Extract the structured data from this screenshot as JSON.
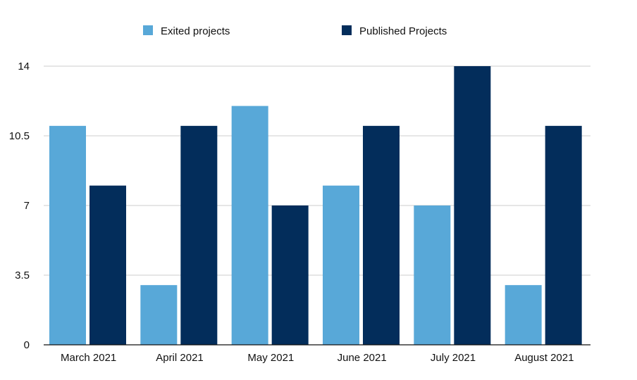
{
  "chart_data": {
    "type": "bar",
    "categories": [
      "March 2021",
      "April 2021",
      "May 2021",
      "June 2021",
      "July 2021",
      "August 2021"
    ],
    "series": [
      {
        "name": "Exited projects",
        "color": "#58a8d8",
        "values": [
          11,
          3,
          12,
          8,
          7,
          3
        ]
      },
      {
        "name": "Published Projects",
        "color": "#032d5b",
        "values": [
          8,
          11,
          7,
          11,
          14,
          11
        ]
      }
    ],
    "y_ticks": [
      "0",
      "3.5",
      "7",
      "10.5",
      "14"
    ],
    "ylim": [
      0,
      14
    ],
    "grid": true,
    "legend_position": "top"
  }
}
